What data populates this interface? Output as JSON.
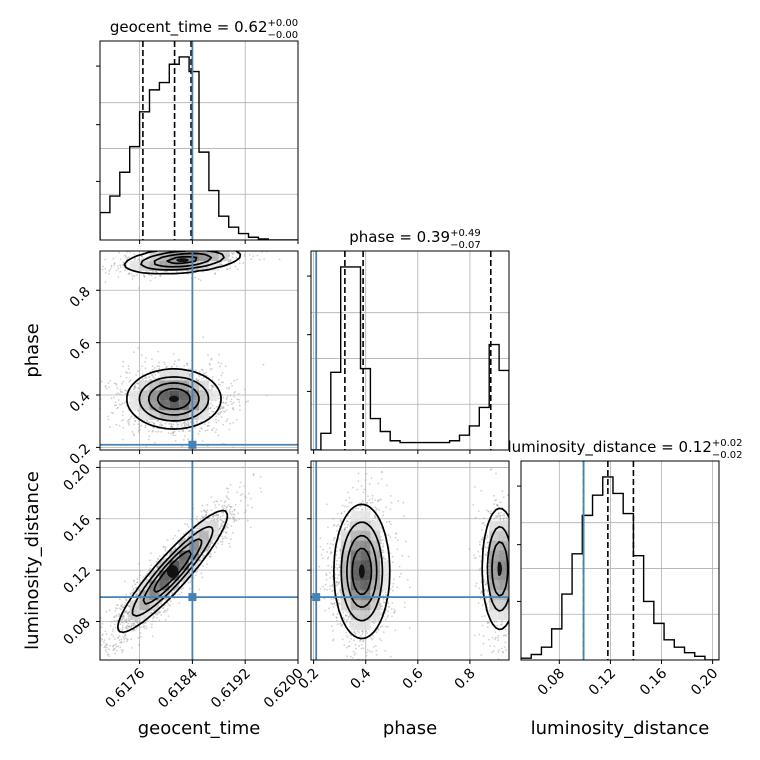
{
  "chart_data": {
    "type": "corner",
    "parameters": [
      "geocent_time",
      "phase",
      "luminosity_distance"
    ],
    "truth": {
      "geocent_time": 0.6184,
      "phase": 0.21,
      "luminosity_distance": 0.099
    },
    "panels": [
      {
        "id": "hist-geocent_time",
        "type": "histogram",
        "param": "geocent_time",
        "xlim": [
          0.617,
          0.62
        ],
        "title_main": "geocent_time = 0.62",
        "title_sup": "+0.00",
        "title_sub": "−0.00",
        "quantiles": [
          0.61765,
          0.61813,
          0.61838
        ],
        "bin_edges": [
          0.617,
          0.61715,
          0.6173,
          0.61745,
          0.6176,
          0.61775,
          0.6179,
          0.61805,
          0.6182,
          0.61835,
          0.6185,
          0.61865,
          0.6188,
          0.61895,
          0.6191,
          0.61925,
          0.6194,
          0.61955,
          0.6197,
          0.61985,
          0.62
        ],
        "counts": [
          0.15,
          0.24,
          0.37,
          0.51,
          0.7,
          0.82,
          0.86,
          0.96,
          1.0,
          0.92,
          0.48,
          0.27,
          0.13,
          0.07,
          0.035,
          0.015,
          0.006,
          0.0,
          0.0,
          0.0
        ]
      },
      {
        "id": "hist-phase",
        "type": "histogram",
        "param": "phase",
        "xlim": [
          0.19,
          0.95
        ],
        "title_main": "phase = 0.39",
        "title_sup": "+0.49",
        "title_sub": "−0.07",
        "quantiles": [
          0.32,
          0.39,
          0.88
        ],
        "bin_edges": [
          0.19,
          0.228,
          0.266,
          0.304,
          0.342,
          0.38,
          0.418,
          0.456,
          0.494,
          0.532,
          0.57,
          0.608,
          0.646,
          0.684,
          0.722,
          0.76,
          0.798,
          0.836,
          0.874,
          0.912,
          0.95
        ],
        "counts": [
          0.0,
          0.09,
          0.42,
          0.99,
          0.99,
          0.44,
          0.17,
          0.1,
          0.05,
          0.04,
          0.04,
          0.04,
          0.04,
          0.04,
          0.05,
          0.08,
          0.13,
          0.23,
          0.57,
          0.43
        ]
      },
      {
        "id": "hist-luminosity_distance",
        "type": "histogram",
        "param": "luminosity_distance",
        "xlim": [
          0.05,
          0.205
        ],
        "title_main": "luminosity_distance = 0.12",
        "title_sup": "+0.02",
        "title_sub": "−0.02",
        "quantiles": [
          0.099,
          0.118,
          0.138
        ],
        "bin_edges": [
          0.05,
          0.058,
          0.066,
          0.074,
          0.082,
          0.09,
          0.098,
          0.106,
          0.114,
          0.122,
          0.13,
          0.138,
          0.146,
          0.154,
          0.162,
          0.17,
          0.178,
          0.186,
          0.194,
          0.205
        ],
        "counts": [
          0.01,
          0.03,
          0.07,
          0.17,
          0.36,
          0.58,
          0.79,
          0.9,
          1.0,
          0.91,
          0.8,
          0.57,
          0.32,
          0.2,
          0.11,
          0.07,
          0.04,
          0.02,
          0.0
        ]
      },
      {
        "id": "scatter-geocent_time-phase",
        "type": "contour2d",
        "xparam": "geocent_time",
        "yparam": "phase",
        "xlim": [
          0.617,
          0.62
        ],
        "ylim": [
          0.19,
          0.95
        ],
        "modes": [
          {
            "cx": 0.61812,
            "cy": 0.385,
            "sx": 0.0003,
            "sy": 0.048,
            "weight": 0.68
          },
          {
            "cx": 0.61825,
            "cy": 0.915,
            "sx": 0.00038,
            "sy": 0.022,
            "tilt": 0.35,
            "weight": 0.32
          }
        ]
      },
      {
        "id": "scatter-geocent_time-luminosity_distance",
        "type": "contour2d",
        "xparam": "geocent_time",
        "yparam": "luminosity_distance",
        "xlim": [
          0.617,
          0.62
        ],
        "ylim": [
          0.05,
          0.205
        ],
        "modes": [
          {
            "cx": 0.6181,
            "cy": 0.119,
            "sx": 0.00035,
            "sy": 0.02,
            "tilt": 0.92,
            "weight": 1.0
          }
        ]
      },
      {
        "id": "scatter-phase-luminosity_distance",
        "type": "contour2d",
        "xparam": "phase",
        "yparam": "luminosity_distance",
        "xlim": [
          0.19,
          0.95
        ],
        "ylim": [
          0.05,
          0.205
        ],
        "modes": [
          {
            "cx": 0.385,
            "cy": 0.119,
            "sx": 0.045,
            "sy": 0.022,
            "weight": 0.68
          },
          {
            "cx": 0.915,
            "cy": 0.121,
            "sx": 0.03,
            "sy": 0.021,
            "weight": 0.32
          }
        ]
      }
    ],
    "ticks": {
      "geocent_time": {
        "values": [
          0.6176,
          0.6184,
          0.6192,
          0.62
        ],
        "labels": [
          "0.6176",
          "0.6184",
          "0.6192",
          "0.6200"
        ]
      },
      "phase": {
        "values": [
          0.2,
          0.4,
          0.6,
          0.8
        ],
        "labels": [
          "0.2",
          "0.4",
          "0.6",
          "0.8"
        ]
      },
      "luminosity_distance": {
        "values": [
          0.08,
          0.12,
          0.16,
          0.2
        ],
        "labels": [
          "0.08",
          "0.12",
          "0.16",
          "0.20"
        ]
      }
    },
    "axis_labels": {
      "geocent_time": "geocent_time",
      "phase": "phase",
      "luminosity_distance": "luminosity_distance"
    },
    "colors": {
      "truth": "#4682b4",
      "hist": "#000000",
      "quantile": "#000000",
      "scatter": "#9a9a9a",
      "grid": "#b0b0b0"
    },
    "grid": true
  }
}
